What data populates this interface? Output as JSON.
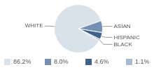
{
  "chart_data": {
    "type": "pie",
    "categories": [
      "WHITE",
      "ASIAN",
      "HISPANIC",
      "BLACK"
    ],
    "values": [
      86.2,
      8.0,
      4.6,
      1.1
    ],
    "value_labels": [
      "86.2%",
      "8.0%",
      "4.6%",
      "1.1%"
    ],
    "colors": [
      "#d9e1eb",
      "#7690b4",
      "#3f618c",
      "#a9bad0"
    ]
  }
}
